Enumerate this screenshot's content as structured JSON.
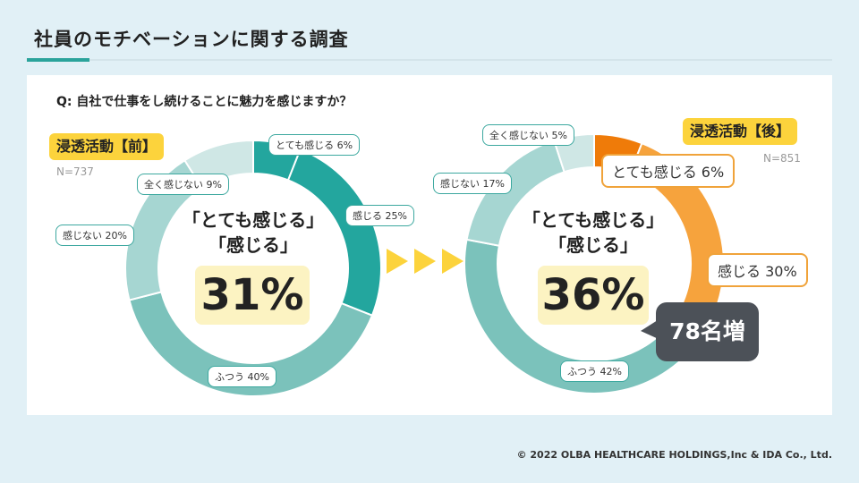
{
  "header": {
    "title": "社員のモチベーションに関する調査",
    "question": "Q: 自社で仕事をし続けることに魅力を感じますか？"
  },
  "colors": {
    "very_feel": "#23a69e",
    "feel": "#23a69e",
    "neutral": "#7bc2bb",
    "not_feel": "#a6d6d2",
    "not_at_all": "#cfe7e5",
    "after_very_feel": "#ef7b09",
    "after_feel": "#f6a33d",
    "badge": "#fcd33c",
    "callout": "#4c5158"
  },
  "chart_data": [
    {
      "type": "pie",
      "donut": true,
      "title": "浸透活動【前】",
      "n_label": "N=737",
      "slices": [
        {
          "label": "とても感じる",
          "value": 6,
          "text": "とても感じる 6%"
        },
        {
          "label": "感じる",
          "value": 25,
          "text": "感じる 25%"
        },
        {
          "label": "ふつう",
          "value": 40,
          "text": "ふつう 40%"
        },
        {
          "label": "感じない",
          "value": 20,
          "text": "感じない 20%"
        },
        {
          "label": "全く感じない",
          "value": 9,
          "text": "全く感じない 9%"
        }
      ],
      "center_line1": "「とても感じる」",
      "center_line2": "「感じる」",
      "center_value": "31%"
    },
    {
      "type": "pie",
      "donut": true,
      "title": "浸透活動【後】",
      "n_label": "N=851",
      "slices": [
        {
          "label": "とても感じる",
          "value": 6,
          "text": "とても感じる 6%"
        },
        {
          "label": "感じる",
          "value": 30,
          "text": "感じる 30%"
        },
        {
          "label": "ふつう",
          "value": 42,
          "text": "ふつう 42%"
        },
        {
          "label": "感じない",
          "value": 17,
          "text": "感じない 17%"
        },
        {
          "label": "全く感じない",
          "value": 5,
          "text": "全く感じない 5%"
        }
      ],
      "center_line1": "「とても感じる」",
      "center_line2": "「感じる」",
      "center_value": "36%",
      "callout": "78名増"
    }
  ],
  "footer": {
    "copyright": "© 2022 OLBA HEALTHCARE HOLDINGS,Inc  & IDA Co., Ltd."
  }
}
